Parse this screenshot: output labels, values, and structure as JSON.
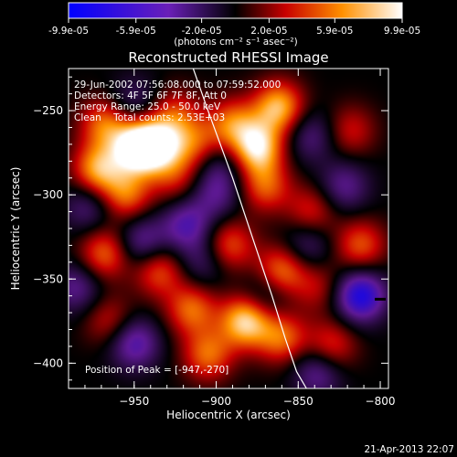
{
  "chart_data": {
    "type": "heatmap",
    "title": "Reconstructed RHESSI Image",
    "xlabel": "Heliocentric X (arcsec)",
    "ylabel": "Heliocentric Y (arcsec)",
    "xlim": [
      -990,
      -795
    ],
    "ylim": [
      -415,
      -225
    ],
    "x_ticks": [
      -950,
      -900,
      -850,
      -800
    ],
    "y_ticks": [
      -250,
      -300,
      -350,
      -400
    ],
    "colorbar": {
      "range": [
        -9.9e-05,
        9.9e-05
      ],
      "tick_values": [
        -9.9e-05,
        -5.9e-05,
        -2e-05,
        2e-05,
        5.9e-05,
        9.9e-05
      ],
      "tick_labels": [
        "-9.9e-05",
        "-5.9e-05",
        "-2.0e-05",
        "2.0e-05",
        "5.9e-05",
        "9.9e-05"
      ],
      "units": "(photons cm⁻² s⁻¹ asec⁻²)"
    },
    "annotations": [
      "29-Jun-2002 07:56:08.000 to 07:59:52.000",
      "Detectors: 4F 5F 6F 7F 8F, Att 0",
      "Energy Range: 25.0 - 50.0 keV",
      "Clean    Total counts: 2.53E+03"
    ],
    "peak_label": "Position of Peak = [-947,-270]",
    "peak": [
      -947,
      -270
    ],
    "timestamp": "21-Apr-2013 22:07",
    "limb_line": {
      "x": [
        -914,
        -905,
        -890,
        -878,
        -866,
        -858,
        -851,
        -845
      ],
      "y": [
        -225,
        -250,
        -290,
        -325,
        -360,
        -385,
        -405,
        -415
      ]
    },
    "blobs": [
      {
        "x": -948,
        "y": -272,
        "v": 1.0
      },
      {
        "x": -935,
        "y": -270,
        "v": 0.75
      },
      {
        "x": -968,
        "y": -258,
        "v": 0.55
      },
      {
        "x": -972,
        "y": -285,
        "v": 0.7
      },
      {
        "x": -955,
        "y": -300,
        "v": 0.55
      },
      {
        "x": -925,
        "y": -252,
        "v": 0.4
      },
      {
        "x": -925,
        "y": -290,
        "v": 0.35
      },
      {
        "x": -912,
        "y": -270,
        "v": 0.45
      },
      {
        "x": -890,
        "y": -258,
        "v": 0.55
      },
      {
        "x": -875,
        "y": -272,
        "v": 0.85
      },
      {
        "x": -862,
        "y": -248,
        "v": 0.75
      },
      {
        "x": -870,
        "y": -295,
        "v": 0.5
      },
      {
        "x": -860,
        "y": -345,
        "v": 0.6
      },
      {
        "x": -892,
        "y": -330,
        "v": 0.5
      },
      {
        "x": -882,
        "y": -375,
        "v": 0.85
      },
      {
        "x": -860,
        "y": -385,
        "v": 0.55
      },
      {
        "x": -915,
        "y": -368,
        "v": 0.55
      },
      {
        "x": -935,
        "y": -345,
        "v": 0.5
      },
      {
        "x": -968,
        "y": -335,
        "v": 0.55
      },
      {
        "x": -965,
        "y": -375,
        "v": 0.35
      },
      {
        "x": -905,
        "y": -395,
        "v": 0.55
      },
      {
        "x": -842,
        "y": -310,
        "v": 0.4
      },
      {
        "x": -818,
        "y": -262,
        "v": 0.35
      },
      {
        "x": -830,
        "y": -390,
        "v": 0.45
      },
      {
        "x": -812,
        "y": -330,
        "v": 0.5
      },
      {
        "x": -838,
        "y": -355,
        "v": 0.3
      },
      {
        "x": -945,
        "y": -328,
        "v": -0.45
      },
      {
        "x": -918,
        "y": -318,
        "v": -0.5
      },
      {
        "x": -900,
        "y": -300,
        "v": -0.35
      },
      {
        "x": -812,
        "y": -360,
        "v": -0.8
      },
      {
        "x": -822,
        "y": -295,
        "v": -0.4
      },
      {
        "x": -842,
        "y": -265,
        "v": -0.35
      },
      {
        "x": -950,
        "y": -388,
        "v": -0.55
      },
      {
        "x": -985,
        "y": -355,
        "v": -0.4
      },
      {
        "x": -978,
        "y": -307,
        "v": -0.35
      },
      {
        "x": -908,
        "y": -340,
        "v": -0.3
      },
      {
        "x": -838,
        "y": -405,
        "v": -0.45
      },
      {
        "x": -870,
        "y": -360,
        "v": -0.3
      },
      {
        "x": -898,
        "y": -282,
        "v": -0.3
      },
      {
        "x": -950,
        "y": -245,
        "v": -0.3
      },
      {
        "x": -845,
        "y": -330,
        "v": -0.35
      }
    ]
  }
}
